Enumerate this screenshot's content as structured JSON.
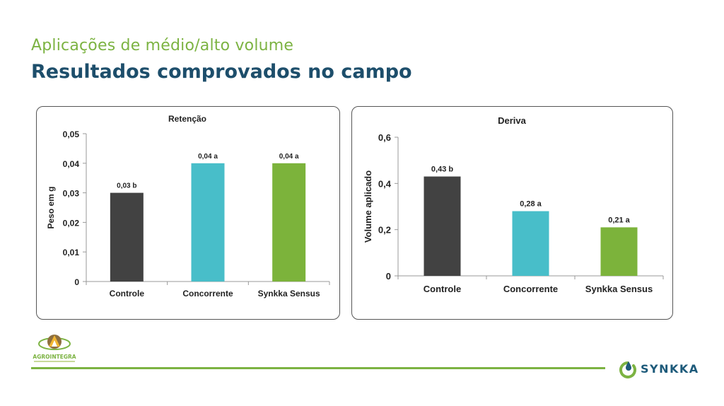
{
  "header": {
    "subtitle": "Aplicações de médio/alto volume",
    "title": "Resultados comprovados no campo"
  },
  "logos": {
    "left_name": "AGROINTEGRA",
    "right_name": "SYNKKA"
  },
  "colors": {
    "accent_green": "#7cb342",
    "title_blue": "#1d4e6b",
    "bar_controle": "#424242",
    "bar_concorrente": "#48bec9",
    "bar_synkka": "#7cb33b"
  },
  "chart_data": [
    {
      "type": "bar",
      "title": "Retenção",
      "xlabel": "",
      "ylabel": "Peso em g",
      "categories": [
        "Controle",
        "Concorrente",
        "Synkka Sensus"
      ],
      "values": [
        0.03,
        0.04,
        0.04
      ],
      "data_labels": [
        "0,03 b",
        "0,04 a",
        "0,04 a"
      ],
      "ylim": [
        0,
        0.05
      ],
      "yticks": [
        0,
        0.01,
        0.02,
        0.03,
        0.04,
        0.05
      ],
      "ytick_labels": [
        "0",
        "0,01",
        "0,02",
        "0,03",
        "0,04",
        "0,05"
      ],
      "colors": [
        "#424242",
        "#48bec9",
        "#7cb33b"
      ],
      "grid": false
    },
    {
      "type": "bar",
      "title": "Deriva",
      "xlabel": "",
      "ylabel": "Volume aplicado",
      "categories": [
        "Controle",
        "Concorrente",
        "Synkka Sensus"
      ],
      "values": [
        0.43,
        0.28,
        0.21
      ],
      "data_labels": [
        "0,43 b",
        "0,28 a",
        "0,21 a"
      ],
      "ylim": [
        0,
        0.6
      ],
      "yticks": [
        0,
        0.2,
        0.4,
        0.6
      ],
      "ytick_labels": [
        "0",
        "0,2",
        "0,4",
        "0,6"
      ],
      "colors": [
        "#424242",
        "#48bec9",
        "#7cb33b"
      ],
      "grid": false
    }
  ]
}
